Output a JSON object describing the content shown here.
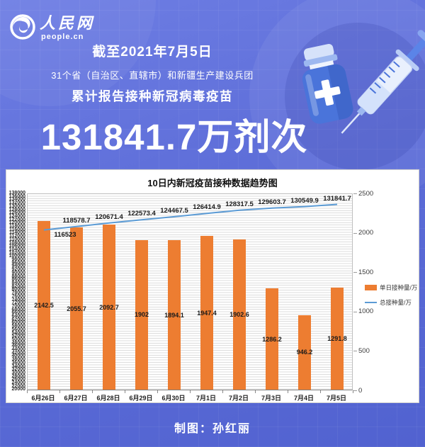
{
  "logo": {
    "name": "人民网",
    "domain": "people.cn"
  },
  "header": {
    "date_line": "截至2021年7月5日",
    "scope_line": "31个省（自治区、直辖市）和新疆生产建设兵团",
    "report_line": "累计报告接种新冠病毒疫苗",
    "big_number": "131841.7万剂次"
  },
  "footer": {
    "credit": "制图：孙红丽"
  },
  "colors": {
    "bar": "#ED7D31",
    "line": "#5B9BD5",
    "background_top": "#6e7ee4",
    "background_bottom": "#5162d0",
    "card": "#ffffff"
  },
  "chart_data": {
    "type": "bar",
    "title": "10日内新冠疫苗接种数据趋势图",
    "categories": [
      "6月26日",
      "6月27日",
      "6月28日",
      "6月29日",
      "6月30日",
      "7月1日",
      "7月2日",
      "7月3日",
      "7月4日",
      "7月5日"
    ],
    "series": [
      {
        "name": "单日接种量/万",
        "type": "bar",
        "axis": "right",
        "color": "#ED7D31",
        "values": [
          2142.5,
          2055.7,
          2092.7,
          1902,
          1894.1,
          1947.4,
          1902.6,
          1286.2,
          946.2,
          1291.8
        ]
      },
      {
        "name": "总接种量/万",
        "type": "line",
        "axis": "left",
        "color": "#5B9BD5",
        "values": [
          116523,
          118578.7,
          120671.4,
          122573.4,
          124467.5,
          126414.9,
          128317.5,
          129603.7,
          130549.9,
          131841.7
        ]
      }
    ],
    "left_axis": {
      "min": 20000,
      "max": 138000,
      "step": 2000
    },
    "right_axis": {
      "min": 0,
      "max": 2500,
      "step": 500,
      "ticks": [
        "2500",
        "2000",
        "1500",
        "1000",
        "500",
        "0"
      ]
    },
    "legend_position": "right",
    "grid": true
  }
}
